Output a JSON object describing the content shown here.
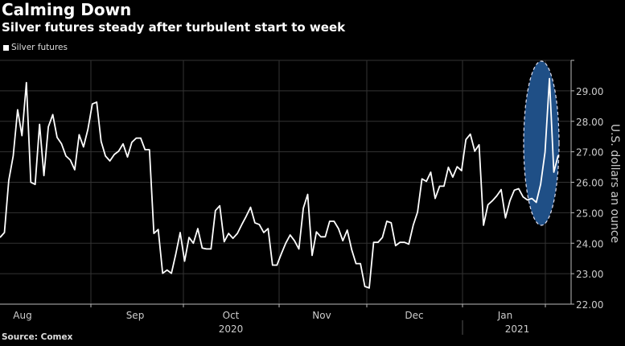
{
  "chart_data": {
    "type": "line",
    "title": "Calming Down",
    "subtitle": "Silver futures steady after turbulent start to week",
    "legend": [
      "Silver futures"
    ],
    "legend_position": "top-left",
    "ylabel": "U.S. dollars an ounce",
    "ylim": [
      22,
      30
    ],
    "yticks": [
      "22.00",
      "23.00",
      "24.00",
      "25.00",
      "26.00",
      "27.00",
      "28.00",
      "29.00"
    ],
    "x_month_labels": [
      "Aug",
      "Sep",
      "Oct",
      "Nov",
      "Dec",
      "Jan"
    ],
    "x_year_labels": [
      "2020",
      "2021"
    ],
    "grid": true,
    "highlight": "ellipse around final trading days (late Jan 2021 spike)",
    "series": [
      {
        "name": "Silver futures",
        "color": "#ffffff",
        "values": [
          24.19,
          24.35,
          26.06,
          26.86,
          28.38,
          27.53,
          29.27,
          26.0,
          25.93,
          27.9,
          26.22,
          27.82,
          28.22,
          27.47,
          27.26,
          26.86,
          26.73,
          26.41,
          27.56,
          27.16,
          27.74,
          28.57,
          28.63,
          27.34,
          26.86,
          26.7,
          26.91,
          27.02,
          27.26,
          26.83,
          27.31,
          27.45,
          27.45,
          27.07,
          27.07,
          24.32,
          24.45,
          23.01,
          23.12,
          23.01,
          23.65,
          24.35,
          23.41,
          24.19,
          24.0,
          24.48,
          23.84,
          23.81,
          23.81,
          25.07,
          25.23,
          24.05,
          24.32,
          24.16,
          24.32,
          24.61,
          24.88,
          25.18,
          24.67,
          24.61,
          24.35,
          24.48,
          23.28,
          23.28,
          23.65,
          24.0,
          24.27,
          24.08,
          23.81,
          25.15,
          25.6,
          23.6,
          24.37,
          24.21,
          24.21,
          24.72,
          24.72,
          24.48,
          24.08,
          24.43,
          23.79,
          23.33,
          23.33,
          22.58,
          22.53,
          24.03,
          24.03,
          24.19,
          24.72,
          24.67,
          23.92,
          24.03,
          24.03,
          23.97,
          24.59,
          25.02,
          26.11,
          26.03,
          26.33,
          25.47,
          25.87,
          25.87,
          26.49,
          26.17,
          26.51,
          26.38,
          27.4,
          27.58,
          27.02,
          27.23,
          24.59,
          25.26,
          25.39,
          25.55,
          25.76,
          24.83,
          25.39,
          25.74,
          25.79,
          25.52,
          25.42,
          25.47,
          25.34,
          25.93,
          26.99,
          29.4,
          26.33,
          26.89
        ]
      }
    ],
    "source": "Source: Comex"
  },
  "colors": {
    "background": "#000000",
    "highlight": "#1f4f86",
    "line": "#ffffff",
    "grid": "#333333"
  }
}
